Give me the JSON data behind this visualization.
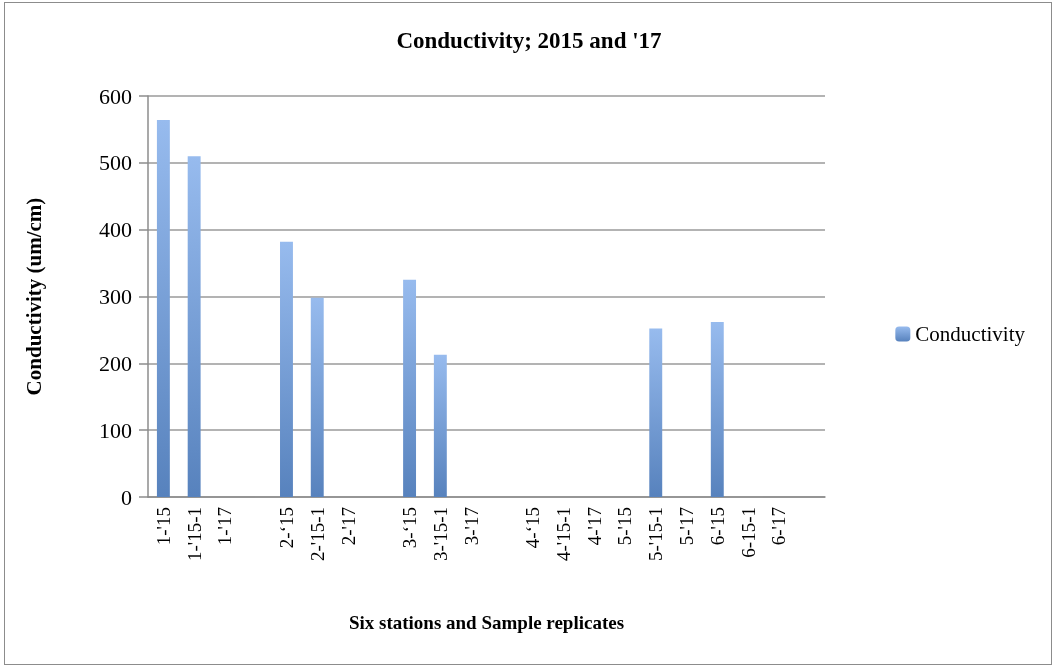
{
  "chart_data": {
    "type": "bar",
    "title": "Conductivity; 2015 and '17",
    "xlabel": "Six stations and Sample replicates",
    "ylabel": "Conductivity (um/cm)",
    "categories": [
      "1-'15",
      "1-'15-1",
      "1-'17",
      null,
      "2-‘15",
      "2-'15-1",
      "2-'17",
      null,
      "3-‘15",
      "3-'15-1",
      "3-'17",
      null,
      "4-‘15",
      "4-'15-1",
      "4-'17",
      "5-'15",
      "5-'15-1",
      "5-'17",
      "6-'15",
      "6-15-1",
      "6-'17",
      null
    ],
    "series": [
      {
        "name": "Conductivity",
        "color": "#6a9ee6",
        "values": [
          564,
          510,
          null,
          null,
          382,
          298,
          null,
          null,
          325,
          213,
          null,
          null,
          null,
          null,
          null,
          null,
          252,
          null,
          262,
          null,
          null,
          null
        ]
      }
    ],
    "ylim": [
      0,
      600
    ],
    "yticks": [
      0,
      100,
      200,
      300,
      400,
      500,
      600
    ],
    "grid": "y",
    "legend": "right"
  }
}
